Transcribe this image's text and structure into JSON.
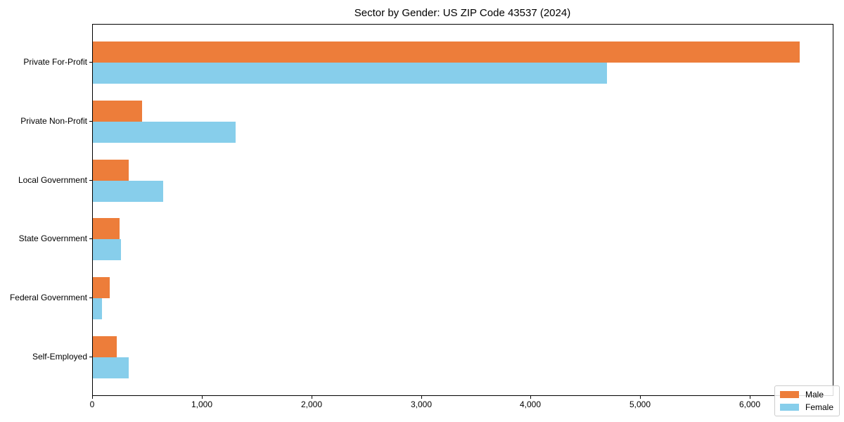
{
  "title": "Sector by Gender: US ZIP Code 43537 (2024)",
  "chart_data": {
    "type": "bar",
    "orientation": "horizontal",
    "title": "Sector by Gender: US ZIP Code 43537 (2024)",
    "xlabel": "",
    "ylabel": "",
    "categories": [
      "Private For-Profit",
      "Private Non-Profit",
      "Local Government",
      "State Government",
      "Federal Government",
      "Self-Employed"
    ],
    "series": [
      {
        "name": "Male",
        "color": "#ED7D3A",
        "values": [
          6450,
          450,
          330,
          245,
          155,
          215
        ]
      },
      {
        "name": "Female",
        "color": "#87CEEB",
        "values": [
          4690,
          1300,
          640,
          255,
          85,
          330
        ]
      }
    ],
    "xlim": [
      0,
      6750
    ],
    "xticks": [
      0,
      1000,
      2000,
      3000,
      4000,
      5000,
      6000
    ],
    "xtick_labels": [
      "0",
      "1,000",
      "2,000",
      "3,000",
      "4,000",
      "5,000",
      "6,000"
    ],
    "grid": false,
    "legend_position": "lower right",
    "row_pad": 0.64,
    "bar_height_frac": 0.355,
    "axis_color": "#000000",
    "background_color": "#ffffff"
  }
}
